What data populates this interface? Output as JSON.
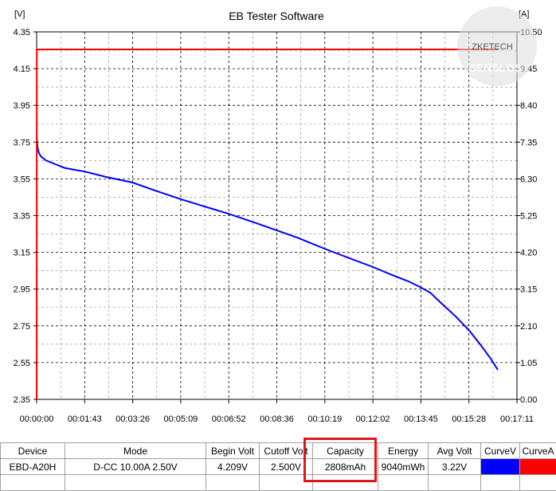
{
  "window": {
    "title": "EB Tester Software"
  },
  "axes": {
    "left_unit": "[V]",
    "right_unit": "[A]"
  },
  "watermark": {
    "top": "ZKETECH",
    "bottom": "SENSLOS"
  },
  "chart_data": {
    "type": "line",
    "title": "EB Tester Software",
    "x_ticks": [
      "00:00:00",
      "00:01:43",
      "00:03:26",
      "00:05:09",
      "00:06:52",
      "00:08:36",
      "00:10:19",
      "00:12:02",
      "00:13:45",
      "00:15:28",
      "00:17:11"
    ],
    "xlim": [
      0,
      1031
    ],
    "y_left": {
      "unit": "V",
      "range": [
        2.35,
        4.35
      ],
      "ticks": [
        "4.35",
        "4.15",
        "3.95",
        "3.75",
        "3.55",
        "3.35",
        "3.15",
        "2.95",
        "2.75",
        "2.55",
        "2.35"
      ]
    },
    "y_right": {
      "unit": "A",
      "range": [
        0,
        10.5
      ],
      "ticks": [
        "10.50",
        "9.45",
        "8.40",
        "7.35",
        "6.30",
        "5.25",
        "4.20",
        "3.15",
        "2.10",
        "1.05",
        "0.00"
      ]
    },
    "grid": true,
    "series": [
      {
        "name": "CurveV",
        "axis": "left",
        "color": "#0000ff",
        "x": [
          0,
          2,
          5,
          10,
          20,
          40,
          60,
          80,
          103,
          150,
          206,
          250,
          309,
          360,
          412,
          470,
          515,
          560,
          618,
          680,
          722,
          760,
          800,
          824,
          845,
          870,
          900,
          930,
          955,
          975,
          990
        ],
        "y": [
          3.78,
          3.72,
          3.69,
          3.67,
          3.65,
          3.63,
          3.61,
          3.6,
          3.59,
          3.56,
          3.53,
          3.49,
          3.44,
          3.4,
          3.36,
          3.31,
          3.27,
          3.23,
          3.17,
          3.11,
          3.07,
          3.03,
          2.99,
          2.96,
          2.93,
          2.87,
          2.8,
          2.72,
          2.64,
          2.57,
          2.51
        ]
      },
      {
        "name": "CurveA",
        "axis": "right",
        "color": "#ff0000",
        "x": [
          0,
          0.3,
          1,
          990
        ],
        "y": [
          0.0,
          10.0,
          10.0,
          10.0
        ]
      }
    ]
  },
  "table": {
    "headers": [
      "Device",
      "Mode",
      "Begin Volt",
      "Cutoff Volt",
      "Capacity",
      "Energy",
      "Avg Volt",
      "CurveV",
      "CurveA"
    ],
    "row": [
      "EBD-A20H",
      "D-CC  10.00A  2.50V",
      "4.209V",
      "2.500V",
      "2808mAh",
      "9040mWh",
      "3.22V",
      "",
      ""
    ],
    "curve_colors": [
      "#0000ff",
      "#ff0000"
    ]
  }
}
